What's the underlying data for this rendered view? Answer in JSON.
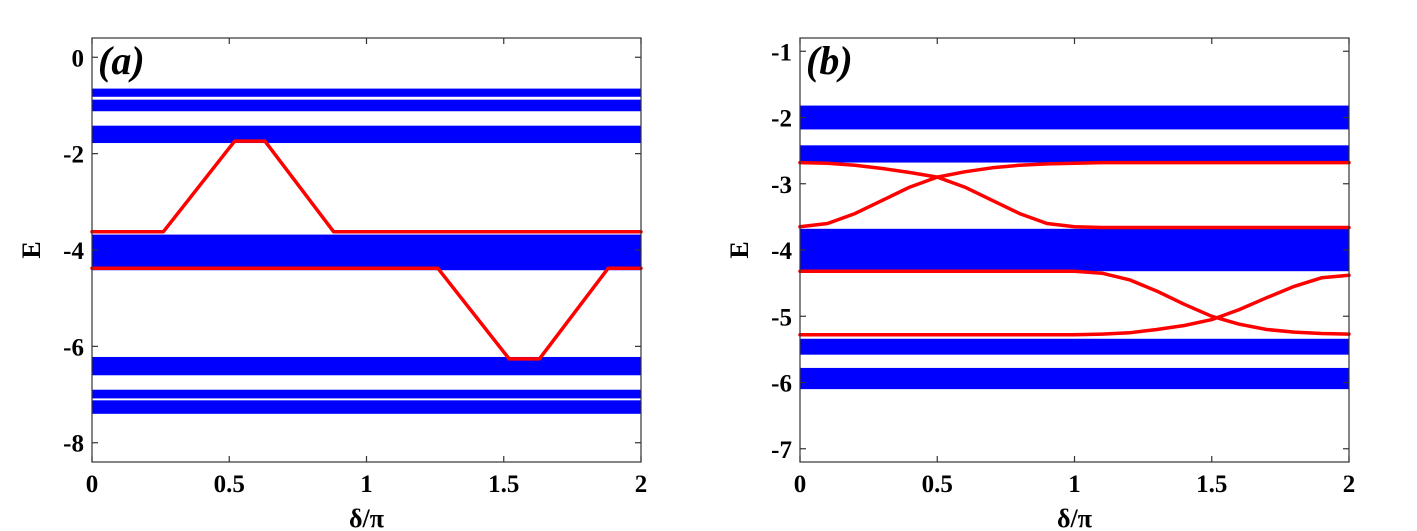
{
  "chart_data": [
    {
      "type": "line",
      "panel": "(a)",
      "panel_label": "(a)",
      "xlabel": "δ/π",
      "ylabel": "E",
      "xlim": [
        0,
        2
      ],
      "ylim": [
        -8.4,
        0.4
      ],
      "xticks": [
        {
          "v": 0,
          "label": "0"
        },
        {
          "v": 0.5,
          "label": "0.5"
        },
        {
          "v": 1,
          "label": "1"
        },
        {
          "v": 1.5,
          "label": "1.5"
        },
        {
          "v": 2,
          "label": "2"
        }
      ],
      "yticks": [
        {
          "v": 0,
          "label": "0"
        },
        {
          "v": -2,
          "label": "-2"
        },
        {
          "v": -4,
          "label": "-4"
        },
        {
          "v": -6,
          "label": "-6"
        },
        {
          "v": -8,
          "label": "-8"
        }
      ],
      "colors": {
        "bands": "#0000ff",
        "edge_states": "#ff0000"
      },
      "bulk_bands": [
        {
          "name": "band",
          "range": [
            -0.65,
            -0.82
          ]
        },
        {
          "name": "band",
          "range": [
            -0.88,
            -1.12
          ]
        },
        {
          "name": "band",
          "range": [
            -1.42,
            -1.78
          ]
        },
        {
          "name": "band",
          "range": [
            -3.68,
            -4.42
          ]
        },
        {
          "name": "band",
          "range": [
            -6.22,
            -6.6
          ]
        },
        {
          "name": "band",
          "range": [
            -6.9,
            -7.08
          ]
        },
        {
          "name": "band",
          "range": [
            -7.12,
            -7.4
          ]
        }
      ],
      "series": [
        {
          "name": "edge state 1",
          "color": "#ff0000",
          "x": [
            0,
            0.26,
            0.52,
            0.63,
            0.88,
            2
          ],
          "y": [
            -3.62,
            -3.62,
            -1.74,
            -1.74,
            -3.62,
            -3.62
          ]
        },
        {
          "name": "edge state 2",
          "color": "#ff0000",
          "x": [
            0,
            1.26,
            1.52,
            1.63,
            1.88,
            2
          ],
          "y": [
            -4.38,
            -4.38,
            -6.26,
            -6.26,
            -4.38,
            -4.38
          ]
        }
      ]
    },
    {
      "type": "line",
      "panel": "(b)",
      "panel_label": "(b)",
      "xlabel": "δ/π",
      "ylabel": "E",
      "xlim": [
        0,
        2
      ],
      "ylim": [
        -7.2,
        -0.8
      ],
      "xticks": [
        {
          "v": 0,
          "label": "0"
        },
        {
          "v": 0.5,
          "label": "0.5"
        },
        {
          "v": 1,
          "label": "1"
        },
        {
          "v": 1.5,
          "label": "1.5"
        },
        {
          "v": 2,
          "label": "2"
        }
      ],
      "yticks": [
        {
          "v": -1,
          "label": "-1"
        },
        {
          "v": -2,
          "label": "-2"
        },
        {
          "v": -3,
          "label": "-3"
        },
        {
          "v": -4,
          "label": "-4"
        },
        {
          "v": -5,
          "label": "-5"
        },
        {
          "v": -6,
          "label": "-6"
        },
        {
          "v": -7,
          "label": "-7"
        }
      ],
      "colors": {
        "bands": "#0000ff",
        "edge_states": "#ff0000"
      },
      "bulk_bands": [
        {
          "name": "band",
          "range": [
            -1.82,
            -2.18
          ]
        },
        {
          "name": "band",
          "range": [
            -2.42,
            -2.68
          ]
        },
        {
          "name": "band",
          "range": [
            -3.68,
            -4.32
          ]
        },
        {
          "name": "band",
          "range": [
            -5.34,
            -5.58
          ]
        },
        {
          "name": "band",
          "range": [
            -5.78,
            -6.1
          ]
        }
      ],
      "series": [
        {
          "name": "edge state 1",
          "color": "#ff0000",
          "x": [
            0,
            0.1,
            0.2,
            0.3,
            0.4,
            0.5,
            0.6,
            0.7,
            0.8,
            0.9,
            1.0,
            1.1,
            2
          ],
          "y": [
            -3.65,
            -3.6,
            -3.45,
            -3.25,
            -3.05,
            -2.9,
            -2.82,
            -2.76,
            -2.72,
            -2.7,
            -2.69,
            -2.68,
            -2.68
          ]
        },
        {
          "name": "edge state 2",
          "color": "#ff0000",
          "x": [
            0,
            0.1,
            0.2,
            0.3,
            0.4,
            0.5,
            0.6,
            0.7,
            0.8,
            0.9,
            1.0,
            1.1,
            2
          ],
          "y": [
            -2.68,
            -2.69,
            -2.72,
            -2.77,
            -2.83,
            -2.9,
            -3.05,
            -3.25,
            -3.45,
            -3.6,
            -3.65,
            -3.66,
            -3.66
          ]
        },
        {
          "name": "edge state 3",
          "color": "#ff0000",
          "x": [
            0,
            1.0,
            1.1,
            1.2,
            1.3,
            1.4,
            1.5,
            1.6,
            1.7,
            1.8,
            1.9,
            2
          ],
          "y": [
            -4.32,
            -4.32,
            -4.35,
            -4.45,
            -4.62,
            -4.82,
            -5.0,
            -5.12,
            -5.2,
            -5.24,
            -5.26,
            -5.27
          ]
        },
        {
          "name": "edge state 4",
          "color": "#ff0000",
          "x": [
            0,
            1.0,
            1.1,
            1.2,
            1.3,
            1.4,
            1.5,
            1.6,
            1.7,
            1.8,
            1.9,
            2
          ],
          "y": [
            -5.28,
            -5.28,
            -5.27,
            -5.25,
            -5.2,
            -5.14,
            -5.05,
            -4.9,
            -4.72,
            -4.55,
            -4.42,
            -4.38
          ]
        }
      ]
    }
  ]
}
